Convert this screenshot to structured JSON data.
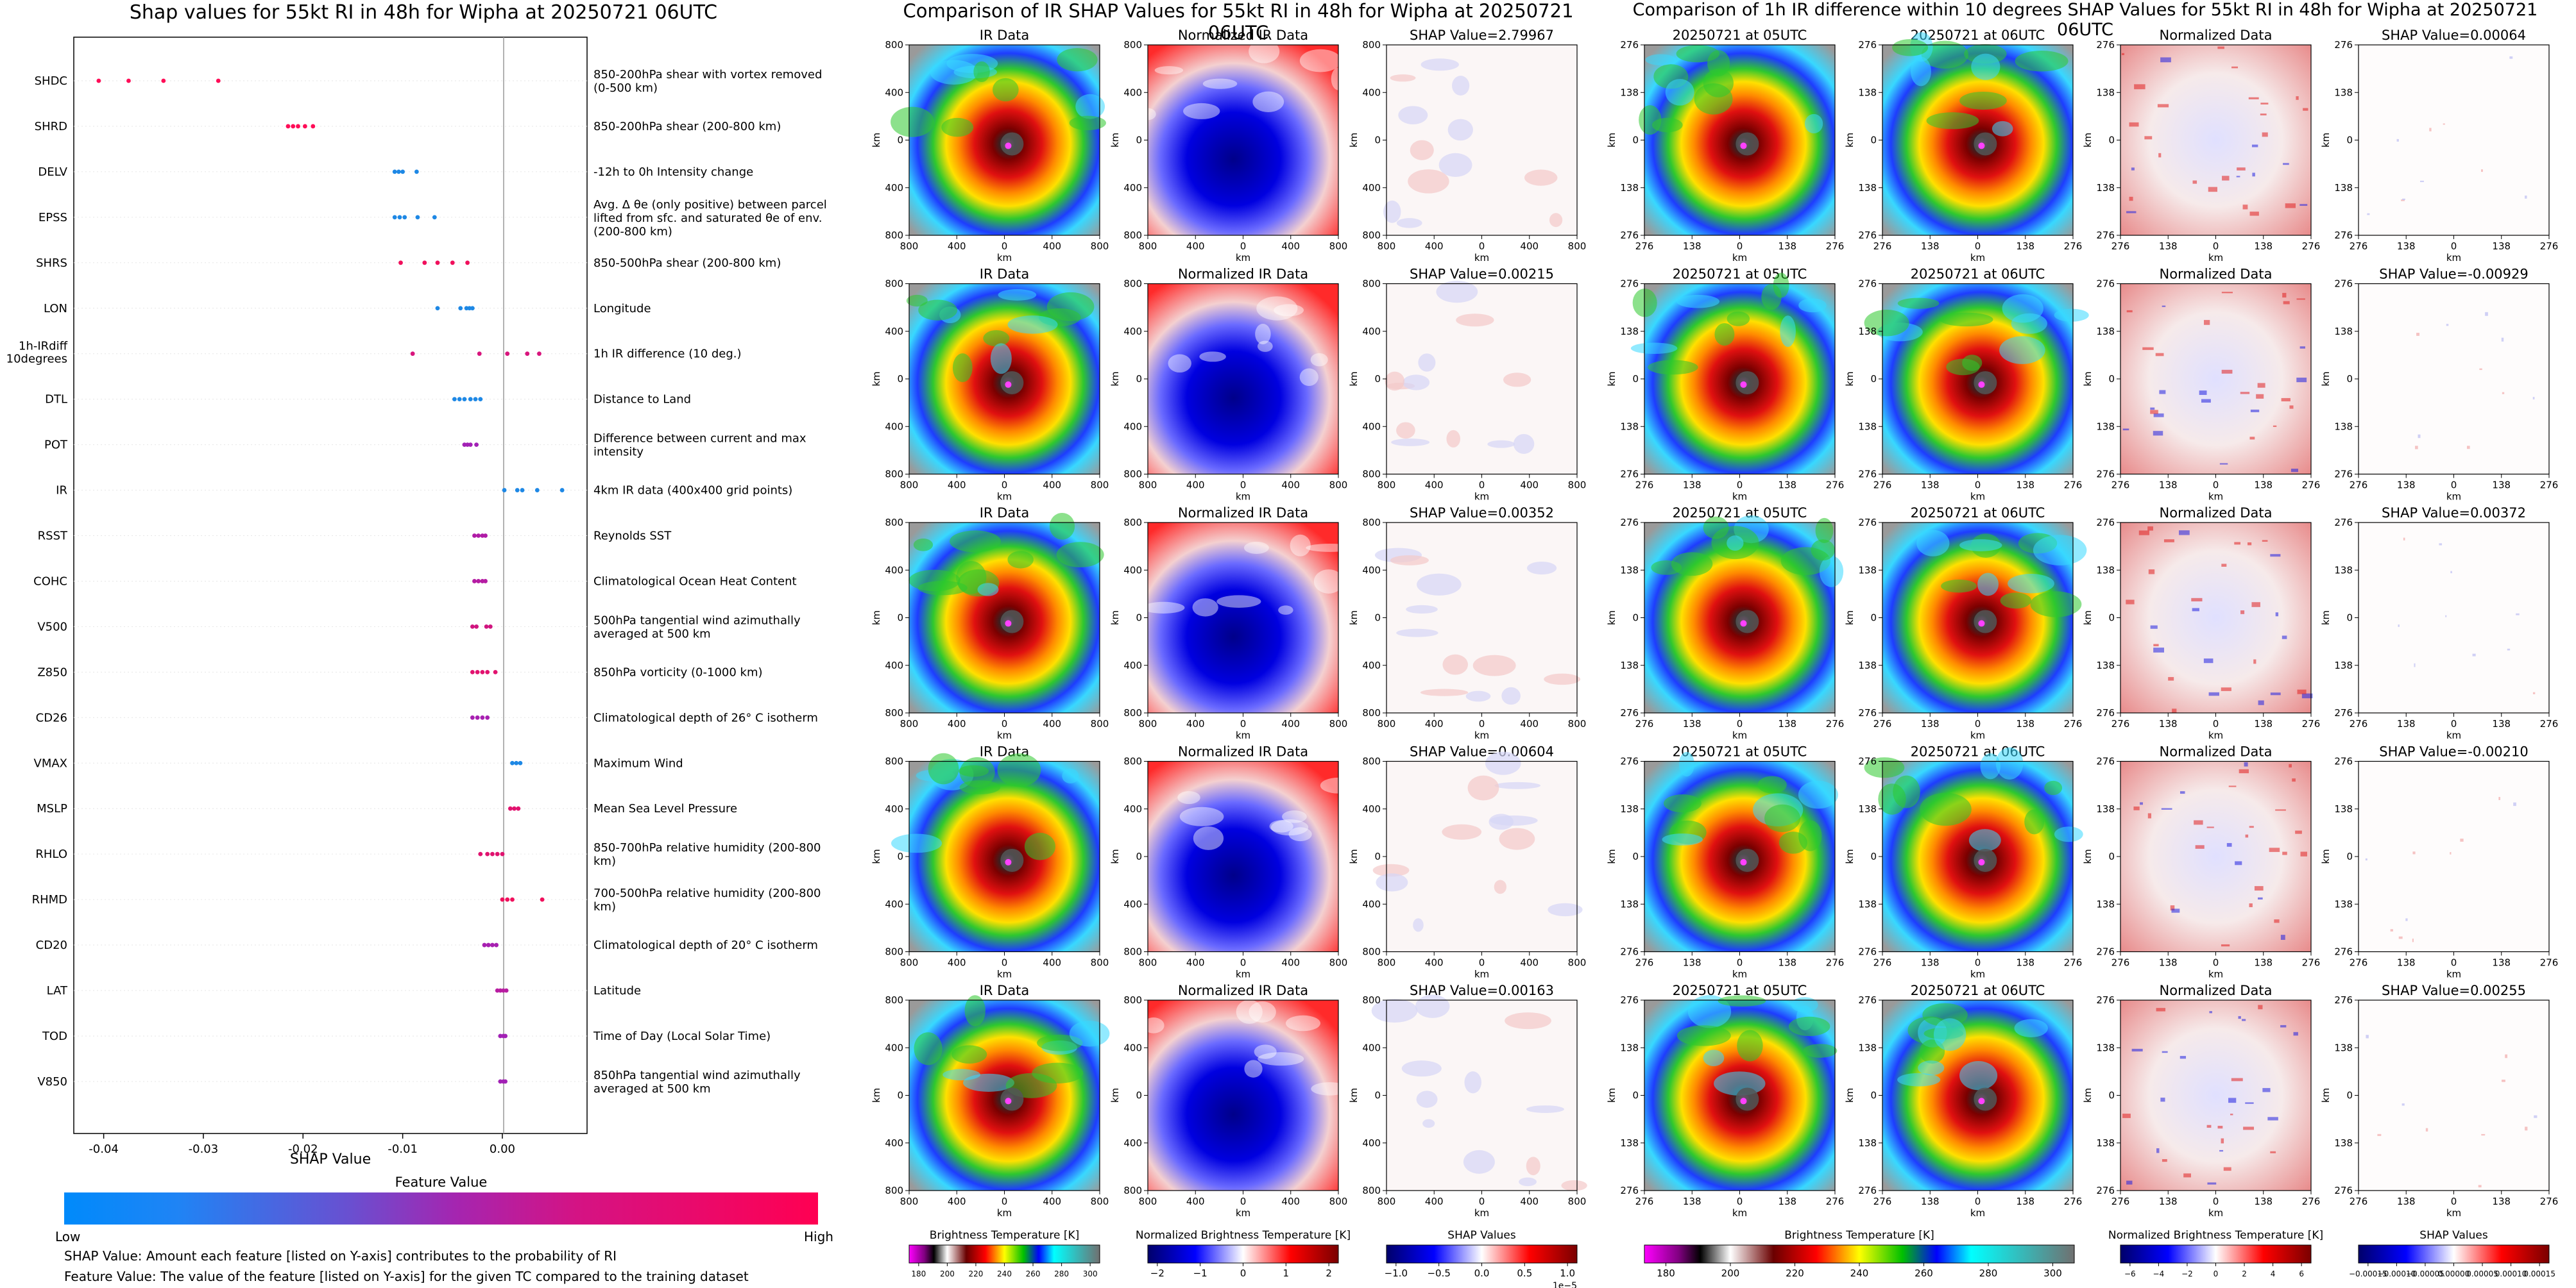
{
  "shap_summary": {
    "title": "Shap values for 55kt RI in 48h for Wipha at 20250721 06UTC",
    "xlabel": "SHAP Value",
    "xticks": [
      "-0.04",
      "-0.03",
      "-0.02",
      "-0.01",
      "0.00"
    ],
    "colorbar_title": "Feature Value",
    "colorbar_low": "Low",
    "colorbar_high": "High",
    "note1": "SHAP Value: Amount each feature [listed on Y-axis] contributes to the probability of RI",
    "note2": "Feature Value: The value of the feature [listed on Y-axis] for the given TC compared to the training dataset"
  },
  "chart_data": [
    {
      "type": "scatter",
      "title": "Shap values for 55kt RI in 48h for Wipha at 20250721 06UTC",
      "xlabel": "SHAP Value",
      "xlim": [
        -0.043,
        0.0085
      ],
      "features": [
        {
          "code": "SHDC",
          "desc": "850-200hPa shear with vortex removed (0-500 km)",
          "points": [
            -0.0405,
            -0.0375,
            -0.034,
            -0.0285
          ],
          "color": "#ff0d57"
        },
        {
          "code": "SHRD",
          "desc": "850-200hPa shear (200-800 km)",
          "points": [
            -0.0215,
            -0.021,
            -0.0205,
            -0.0198,
            -0.019
          ],
          "color": "#ff0d57"
        },
        {
          "code": "DELV",
          "desc": "-12h to 0h Intensity change",
          "points": [
            -0.0108,
            -0.0104,
            -0.01,
            -0.0086
          ],
          "color": "#1e88e5"
        },
        {
          "code": "EPSS",
          "desc": "Avg. Δ θe (only positive) between parcel lifted from sfc. and saturated θe of env. (200-800 km)",
          "points": [
            -0.0108,
            -0.0103,
            -0.0098,
            -0.0085,
            -0.0068
          ],
          "color": "#1e88e5"
        },
        {
          "code": "SHRS",
          "desc": "850-500hPa shear (200-800 km)",
          "points": [
            -0.0102,
            -0.0078,
            -0.0065,
            -0.005,
            -0.0035
          ],
          "color": "#f0105c"
        },
        {
          "code": "LON",
          "desc": "Longitude",
          "points": [
            -0.0065,
            -0.0042,
            -0.0036,
            -0.0033,
            -0.003
          ],
          "color": "#1e88e5"
        },
        {
          "code": "1h-IRdiff 10degrees",
          "desc": "1h IR difference (10 deg.)",
          "points": [
            -0.009,
            -0.0023,
            0.0005,
            0.0025,
            0.0037
          ],
          "color": "#d8157d"
        },
        {
          "code": "DTL",
          "desc": "Distance to Land",
          "points": [
            -0.0048,
            -0.0043,
            -0.0038,
            -0.0032,
            -0.0027,
            -0.0022
          ],
          "color": "#1e88e5"
        },
        {
          "code": "POT",
          "desc": "Difference between current and max intensity",
          "points": [
            -0.0038,
            -0.0035,
            -0.0032,
            -0.0026
          ],
          "color": "#a221b5"
        },
        {
          "code": "IR",
          "desc": "4km IR data (400x400 grid points)",
          "points": [
            0.0002,
            0.0015,
            0.002,
            0.0035,
            0.006
          ],
          "color": "#1e88e5"
        },
        {
          "code": "RSST",
          "desc": "Reynolds SST",
          "points": [
            -0.0028,
            -0.0024,
            -0.002,
            -0.0017
          ],
          "color": "#b01ca6"
        },
        {
          "code": "COHC",
          "desc": "Climatological Ocean Heat Content",
          "points": [
            -0.0028,
            -0.0024,
            -0.002,
            -0.0017
          ],
          "color": "#b51ca3"
        },
        {
          "code": "V500",
          "desc": "500hPa tangential wind azimuthally averaged at 500 km",
          "points": [
            -0.003,
            -0.0026,
            -0.0016,
            -0.0012
          ],
          "color": "#d0157f"
        },
        {
          "code": "Z850",
          "desc": "850hPa vorticity (0-1000 km)",
          "points": [
            -0.003,
            -0.0025,
            -0.002,
            -0.0015,
            -0.0007
          ],
          "color": "#e2126f"
        },
        {
          "code": "CD26",
          "desc": "Climatological depth of 26° C isotherm",
          "points": [
            -0.003,
            -0.0025,
            -0.002,
            -0.0015
          ],
          "color": "#a720b1"
        },
        {
          "code": "VMAX",
          "desc": "Maximum Wind",
          "points": [
            0.001,
            0.0014,
            0.0018
          ],
          "color": "#1e88e5"
        },
        {
          "code": "MSLP",
          "desc": "Mean Sea Level Pressure",
          "points": [
            0.0008,
            0.0012,
            0.0016
          ],
          "color": "#e2126f"
        },
        {
          "code": "RHLO",
          "desc": "850-700hPa relative humidity (200-800 km)",
          "points": [
            -0.0022,
            -0.0015,
            -0.001,
            -0.0005,
            0.0
          ],
          "color": "#e0136f"
        },
        {
          "code": "RHMD",
          "desc": "700-500hPa relative humidity (200-800 km)",
          "points": [
            0.0,
            0.0005,
            0.001,
            0.004
          ],
          "color": "#f0105c"
        },
        {
          "code": "CD20",
          "desc": "Climatological depth of 20° C isotherm",
          "points": [
            -0.0018,
            -0.0014,
            -0.001,
            -0.0006
          ],
          "color": "#a720b1"
        },
        {
          "code": "LAT",
          "desc": "Latitude",
          "points": [
            -0.0005,
            -0.0002,
            0.0001,
            0.0004
          ],
          "color": "#b81ca1"
        },
        {
          "code": "TOD",
          "desc": "Time of Day (Local Solar Time)",
          "points": [
            -0.0002,
            0.0001,
            0.0003
          ],
          "color": "#a221b5"
        },
        {
          "code": "V850",
          "desc": "850hPa tangential wind azimuthally averaged at 500 km",
          "points": [
            -0.0002,
            0.0001,
            0.0003
          ],
          "color": "#a221b5"
        }
      ]
    },
    {
      "type": "heatmap",
      "title": "Comparison of IR SHAP Values for 55kt RI in 48h for Wipha at 20250721 06UTC",
      "columns": [
        "IR Data",
        "Normalized IR Data",
        "SHAP Value"
      ],
      "axis_label": "km",
      "xticks": [
        "800",
        "400",
        "0",
        "400",
        "800"
      ],
      "yticks": [
        "800",
        "400",
        "0",
        "400",
        "800"
      ],
      "shap_values": [
        "2.79967",
        "0.00215",
        "0.00352",
        "0.00604",
        "0.00163"
      ]
    },
    {
      "type": "heatmap",
      "title": "Comparison of 1h IR difference within 10 degrees SHAP Values for 55kt RI in 48h for Wipha at 20250721 06UTC",
      "columns": [
        "20250721 at 05UTC",
        "20250721 at 06UTC",
        "Normalized Data",
        "SHAP Value"
      ],
      "axis_label": "km",
      "xticks": [
        "276",
        "138",
        "0",
        "138",
        "276"
      ],
      "yticks": [
        "276",
        "138",
        "0",
        "138",
        "276"
      ],
      "shap_values": [
        "0.00064",
        "-0.00929",
        "0.00372",
        "-0.00210",
        "0.00255"
      ]
    }
  ],
  "colorbars": [
    {
      "label": "Brightness Temperature [K]",
      "ticks": [
        "180",
        "200",
        "220",
        "240",
        "260",
        "280",
        "300"
      ]
    },
    {
      "label": "Normalized Brightness Temperature [K]",
      "ticks": [
        "−2",
        "−1",
        "0",
        "1",
        "2"
      ]
    },
    {
      "label": "SHAP Values",
      "ticks": [
        "−1.0",
        "−0.5",
        "0.0",
        "0.5",
        "1.0"
      ],
      "offset": "1e−5"
    },
    {
      "label": "Brightness Temperature [K]",
      "ticks": [
        "180",
        "200",
        "220",
        "240",
        "260",
        "280",
        "300"
      ]
    },
    {
      "label": "Normalized Brightness Temperature [K]",
      "ticks": [
        "−6",
        "−4",
        "−2",
        "0",
        "2",
        "4",
        "6"
      ]
    },
    {
      "label": "SHAP Values",
      "ticks": [
        "−0.00015",
        "−0.00010",
        "−0.00005",
        "0.00000",
        "0.00005",
        "0.00010",
        "0.00015"
      ]
    }
  ]
}
